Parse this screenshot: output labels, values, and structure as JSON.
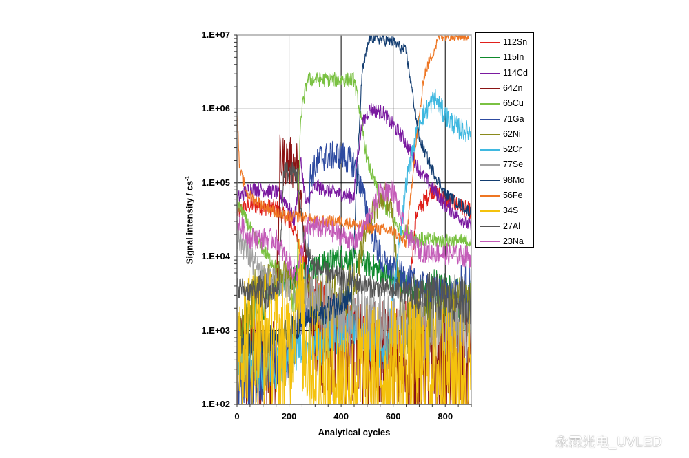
{
  "chart_data": {
    "type": "line",
    "title": "",
    "xlabel": "Analytical cycles",
    "ylabel": "Signal intensity / cs",
    "ylabel_superscript": "-1",
    "yscale": "log",
    "xlim": [
      0,
      900
    ],
    "ylim": [
      100,
      10000000
    ],
    "x_ticks": [
      "0",
      "200",
      "400",
      "600",
      "800"
    ],
    "y_ticks": [
      "1.E+07",
      "1.E+06",
      "1.E+05",
      "1.E+04",
      "1.E+03",
      "1.E+02"
    ],
    "grid": true,
    "legend_position": "right",
    "series": [
      {
        "name": "112Sn",
        "color": "#e0201b",
        "points": [
          [
            0,
            40000
          ],
          [
            50,
            50000
          ],
          [
            150,
            45000
          ],
          [
            200,
            30000
          ],
          [
            230,
            20000
          ],
          [
            260,
            8000
          ],
          [
            300,
            3000
          ],
          [
            400,
            1500
          ],
          [
            500,
            800
          ],
          [
            600,
            500
          ],
          [
            650,
            1500
          ],
          [
            690,
            40000
          ],
          [
            750,
            80000
          ],
          [
            800,
            60000
          ],
          [
            900,
            40000
          ]
        ],
        "noise": 0.12
      },
      {
        "name": "115In",
        "color": "#0e8a2c",
        "points": [
          [
            0,
            400
          ],
          [
            50,
            1500
          ],
          [
            100,
            3000
          ],
          [
            200,
            5000
          ],
          [
            300,
            7000
          ],
          [
            400,
            10000
          ],
          [
            500,
            8000
          ],
          [
            600,
            5000
          ],
          [
            700,
            3500
          ],
          [
            800,
            2500
          ],
          [
            900,
            2000
          ]
        ],
        "noise": 0.18
      },
      {
        "name": "114Cd",
        "color": "#7a1aa0",
        "points": [
          [
            0,
            60000
          ],
          [
            50,
            85000
          ],
          [
            150,
            75000
          ],
          [
            190,
            55000
          ],
          [
            220,
            30000
          ],
          [
            245,
            200000
          ],
          [
            265,
            50000
          ],
          [
            300,
            90000
          ],
          [
            400,
            70000
          ],
          [
            450,
            65000
          ],
          [
            460,
            200000
          ],
          [
            480,
            600000
          ],
          [
            510,
            1000000
          ],
          [
            560,
            900000
          ],
          [
            600,
            600000
          ],
          [
            640,
            400000
          ],
          [
            700,
            150000
          ],
          [
            800,
            50000
          ],
          [
            900,
            25000
          ]
        ],
        "noise": 0.1
      },
      {
        "name": "64Zn",
        "color": "#8b1414",
        "points": [
          [
            0,
            300
          ],
          [
            150,
            400
          ],
          [
            165,
            200000
          ],
          [
            200,
            190000
          ],
          [
            230,
            180000
          ],
          [
            250,
            30000
          ],
          [
            280,
            2000
          ],
          [
            320,
            800
          ],
          [
            400,
            500
          ],
          [
            600,
            400
          ],
          [
            900,
            300
          ]
        ],
        "noise": 0.35
      },
      {
        "name": "65Cu",
        "color": "#7ac142",
        "points": [
          [
            0,
            50000
          ],
          [
            20,
            40000
          ],
          [
            60,
            20000
          ],
          [
            120,
            10000
          ],
          [
            180,
            5000
          ],
          [
            230,
            2000
          ],
          [
            235,
            50000
          ],
          [
            245,
            800000
          ],
          [
            270,
            2500000
          ],
          [
            450,
            2500000
          ],
          [
            470,
            1000000
          ],
          [
            500,
            200000
          ],
          [
            550,
            60000
          ],
          [
            620,
            25000
          ],
          [
            700,
            17000
          ],
          [
            900,
            16000
          ]
        ],
        "noise": 0.1
      },
      {
        "name": "71Ga",
        "color": "#2d4aa0",
        "points": [
          [
            0,
            200
          ],
          [
            100,
            300
          ],
          [
            200,
            500
          ],
          [
            270,
            3000
          ],
          [
            280,
            120000
          ],
          [
            320,
            220000
          ],
          [
            400,
            240000
          ],
          [
            450,
            180000
          ],
          [
            480,
            80000
          ],
          [
            520,
            20000
          ],
          [
            560,
            8000
          ],
          [
            650,
            5000
          ],
          [
            750,
            3500
          ],
          [
            900,
            3000
          ]
        ],
        "noise": 0.2
      },
      {
        "name": "62Ni",
        "color": "#8a8a1c",
        "points": [
          [
            0,
            500
          ],
          [
            50,
            2000
          ],
          [
            100,
            5000
          ],
          [
            200,
            6000
          ],
          [
            250,
            4000
          ],
          [
            300,
            2500
          ],
          [
            400,
            2500
          ],
          [
            450,
            3000
          ],
          [
            480,
            15000
          ],
          [
            520,
            40000
          ],
          [
            570,
            70000
          ],
          [
            600,
            30000
          ],
          [
            640,
            1000
          ],
          [
            680,
            1500
          ],
          [
            900,
            2000
          ]
        ],
        "noise": 0.2
      },
      {
        "name": "52Cr",
        "color": "#3fb8e0",
        "points": [
          [
            0,
            500
          ],
          [
            100,
            300
          ],
          [
            200,
            400
          ],
          [
            250,
            800
          ],
          [
            300,
            600
          ],
          [
            400,
            1000
          ],
          [
            500,
            800
          ],
          [
            580,
            500
          ],
          [
            600,
            3000
          ],
          [
            650,
            100000
          ],
          [
            700,
            700000
          ],
          [
            760,
            1400000
          ],
          [
            800,
            800000
          ],
          [
            850,
            550000
          ],
          [
            900,
            480000
          ]
        ],
        "noise": 0.15
      },
      {
        "name": "77Se",
        "color": "#a0a0a0",
        "points": [
          [
            0,
            20000
          ],
          [
            50,
            10000
          ],
          [
            100,
            5000
          ],
          [
            200,
            4000
          ],
          [
            250,
            3000
          ],
          [
            300,
            2500
          ],
          [
            400,
            1500
          ],
          [
            500,
            1500
          ],
          [
            600,
            1200
          ],
          [
            700,
            1000
          ],
          [
            900,
            1000
          ]
        ],
        "noise": 0.2
      },
      {
        "name": "98Mo",
        "color": "#123c70",
        "points": [
          [
            0,
            600
          ],
          [
            100,
            700
          ],
          [
            200,
            1000
          ],
          [
            300,
            1500
          ],
          [
            400,
            2500
          ],
          [
            440,
            3000
          ],
          [
            460,
            100000
          ],
          [
            480,
            3000000
          ],
          [
            510,
            9500000
          ],
          [
            600,
            8000000
          ],
          [
            650,
            6000000
          ],
          [
            700,
            400000
          ],
          [
            750,
            150000
          ],
          [
            800,
            70000
          ],
          [
            900,
            40000
          ]
        ],
        "noise": 0.08
      },
      {
        "name": "56Fe",
        "color": "#ee7623",
        "points": [
          [
            0,
            1000000
          ],
          [
            10,
            150000
          ],
          [
            40,
            70000
          ],
          [
            100,
            50000
          ],
          [
            180,
            35000
          ],
          [
            250,
            35000
          ],
          [
            300,
            30000
          ],
          [
            400,
            30000
          ],
          [
            500,
            25000
          ],
          [
            600,
            22000
          ],
          [
            650,
            15000
          ],
          [
            680,
            200000
          ],
          [
            720,
            3000000
          ],
          [
            780,
            10000000
          ],
          [
            900,
            10000000
          ]
        ],
        "noise": 0.08
      },
      {
        "name": "34S",
        "color": "#f4c20d",
        "points": [
          [
            0,
            1000
          ],
          [
            100,
            800
          ],
          [
            200,
            600
          ],
          [
            230,
            4000
          ],
          [
            260,
            800
          ],
          [
            300,
            300
          ],
          [
            400,
            250
          ],
          [
            500,
            250
          ],
          [
            700,
            300
          ],
          [
            900,
            300
          ]
        ],
        "noise": 0.45
      },
      {
        "name": "27Al",
        "color": "#555555",
        "points": [
          [
            0,
            4000
          ],
          [
            100,
            3000
          ],
          [
            160,
            3500
          ],
          [
            180,
            150000
          ],
          [
            230,
            130000
          ],
          [
            260,
            15000
          ],
          [
            300,
            7000
          ],
          [
            400,
            5000
          ],
          [
            500,
            4000
          ],
          [
            600,
            3500
          ],
          [
            700,
            3000
          ],
          [
            900,
            2500
          ]
        ],
        "noise": 0.15
      },
      {
        "name": "23Na",
        "color": "#c45bb8",
        "points": [
          [
            0,
            30000
          ],
          [
            50,
            18000
          ],
          [
            150,
            17000
          ],
          [
            200,
            8000
          ],
          [
            230,
            6000
          ],
          [
            270,
            25000
          ],
          [
            320,
            25000
          ],
          [
            400,
            20000
          ],
          [
            450,
            15000
          ],
          [
            500,
            30000
          ],
          [
            550,
            75000
          ],
          [
            600,
            80000
          ],
          [
            650,
            20000
          ],
          [
            700,
            12000
          ],
          [
            900,
            10000
          ]
        ],
        "noise": 0.15
      }
    ]
  },
  "axes": {
    "y_ticks": [
      "1.E+07",
      "1.E+06",
      "1.E+05",
      "1.E+04",
      "1.E+03",
      "1.E+02"
    ],
    "x_ticks": [
      "0",
      "200",
      "400",
      "600",
      "800"
    ],
    "xlabel": "Analytical cycles",
    "ylabel": "Signal intensity / cs",
    "ylabel_sup": "-1"
  },
  "legend": {
    "items": [
      "112Sn",
      "115In",
      "114Cd",
      "64Zn",
      "65Cu",
      "71Ga",
      "62Ni",
      "52Cr",
      "77Se",
      "98Mo",
      "56Fe",
      "34S",
      "27Al",
      "23Na"
    ]
  },
  "watermark": "永霖光电_UVLED"
}
